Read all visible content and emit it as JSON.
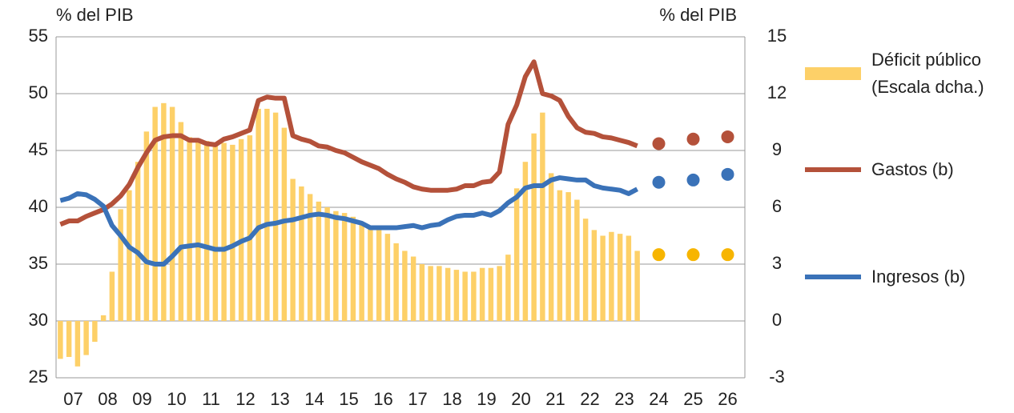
{
  "chart_data": {
    "type": "bar-line",
    "y_label": "% del PIB",
    "y2_label": "% del PIB",
    "xlim": [
      2007,
      2027
    ],
    "xticks": [
      {
        "value": 2007.5,
        "label": "07"
      },
      {
        "value": 2008.5,
        "label": "08"
      },
      {
        "value": 2009.5,
        "label": "09"
      },
      {
        "value": 2010.5,
        "label": "10"
      },
      {
        "value": 2011.5,
        "label": "11"
      },
      {
        "value": 2012.5,
        "label": "12"
      },
      {
        "value": 2013.5,
        "label": "13"
      },
      {
        "value": 2014.5,
        "label": "14"
      },
      {
        "value": 2015.5,
        "label": "15"
      },
      {
        "value": 2016.5,
        "label": "16"
      },
      {
        "value": 2017.5,
        "label": "17"
      },
      {
        "value": 2018.5,
        "label": "18"
      },
      {
        "value": 2019.5,
        "label": "19"
      },
      {
        "value": 2020.5,
        "label": "20"
      },
      {
        "value": 2021.5,
        "label": "21"
      },
      {
        "value": 2022.5,
        "label": "22"
      },
      {
        "value": 2023.5,
        "label": "23"
      },
      {
        "value": 2024.5,
        "label": "24"
      },
      {
        "value": 2025.5,
        "label": "25"
      },
      {
        "value": 2026.5,
        "label": "26"
      }
    ],
    "ylim": [
      25,
      55
    ],
    "yticks": [
      25,
      30,
      35,
      40,
      45,
      50,
      55
    ],
    "y2lim": [
      -3,
      15
    ],
    "y2ticks": [
      -3,
      0,
      3,
      6,
      9,
      12,
      15
    ],
    "grid": true,
    "x": [
      2007.125,
      2007.375,
      2007.625,
      2007.875,
      2008.125,
      2008.375,
      2008.625,
      2008.875,
      2009.125,
      2009.375,
      2009.625,
      2009.875,
      2010.125,
      2010.375,
      2010.625,
      2010.875,
      2011.125,
      2011.375,
      2011.625,
      2011.875,
      2012.125,
      2012.375,
      2012.625,
      2012.875,
      2013.125,
      2013.375,
      2013.625,
      2013.875,
      2014.125,
      2014.375,
      2014.625,
      2014.875,
      2015.125,
      2015.375,
      2015.625,
      2015.875,
      2016.125,
      2016.375,
      2016.625,
      2016.875,
      2017.125,
      2017.375,
      2017.625,
      2017.875,
      2018.125,
      2018.375,
      2018.625,
      2018.875,
      2019.125,
      2019.375,
      2019.625,
      2019.875,
      2020.125,
      2020.375,
      2020.625,
      2020.875,
      2021.125,
      2021.375,
      2021.625,
      2021.875,
      2022.125,
      2022.375,
      2022.625,
      2022.875,
      2023.125,
      2023.375,
      2023.625,
      2023.875
    ],
    "series": [
      {
        "name": "Déficit público (Escala dcha.)",
        "type": "bar",
        "axis": "y2",
        "color": "#fdd068",
        "values": [
          -2.0,
          -1.9,
          -2.4,
          -1.8,
          -1.1,
          0.3,
          2.6,
          5.9,
          6.9,
          8.4,
          10.0,
          11.3,
          11.5,
          11.3,
          10.5,
          9.7,
          9.5,
          9.5,
          9.4,
          9.4,
          9.3,
          9.6,
          9.8,
          11.2,
          11.2,
          11.0,
          10.2,
          7.5,
          7.1,
          6.7,
          6.3,
          6.0,
          5.8,
          5.7,
          5.5,
          5.2,
          5.0,
          4.9,
          4.6,
          4.1,
          3.7,
          3.4,
          3.0,
          2.9,
          2.9,
          2.8,
          2.7,
          2.6,
          2.6,
          2.8,
          2.8,
          2.9,
          3.5,
          7.0,
          8.4,
          9.9,
          11.0,
          7.8,
          6.9,
          6.8,
          6.4,
          5.4,
          4.8,
          4.5,
          4.7,
          4.6,
          4.5,
          3.7
        ]
      },
      {
        "name": "Gastos (b)",
        "type": "line",
        "color": "#b4513a",
        "values": [
          38.5,
          38.8,
          38.8,
          39.2,
          39.5,
          39.8,
          40.3,
          41.0,
          42.0,
          43.5,
          44.8,
          45.9,
          46.2,
          46.3,
          46.3,
          45.9,
          45.9,
          45.6,
          45.5,
          46.0,
          46.2,
          46.5,
          46.8,
          49.4,
          49.7,
          49.6,
          49.6,
          46.3,
          46.0,
          45.8,
          45.4,
          45.3,
          45.0,
          44.8,
          44.4,
          44.0,
          43.7,
          43.4,
          42.9,
          42.5,
          42.2,
          41.8,
          41.6,
          41.5,
          41.5,
          41.5,
          41.6,
          41.9,
          41.9,
          42.2,
          42.3,
          43.1,
          47.3,
          49.0,
          51.5,
          52.8,
          50.0,
          49.8,
          49.4,
          48.0,
          47.0,
          46.6,
          46.5,
          46.2,
          46.1,
          45.9,
          45.7,
          45.4
        ]
      },
      {
        "name": "Ingresos (b)",
        "type": "line",
        "color": "#3a72b8",
        "values": [
          40.6,
          40.8,
          41.2,
          41.1,
          40.7,
          40.1,
          38.4,
          37.5,
          36.5,
          36.0,
          35.2,
          35.0,
          35.0,
          35.7,
          36.5,
          36.6,
          36.7,
          36.5,
          36.3,
          36.3,
          36.6,
          37.0,
          37.3,
          38.2,
          38.5,
          38.6,
          38.8,
          38.9,
          39.1,
          39.3,
          39.4,
          39.3,
          39.1,
          39.0,
          38.8,
          38.6,
          38.2,
          38.2,
          38.2,
          38.2,
          38.3,
          38.4,
          38.2,
          38.4,
          38.5,
          38.9,
          39.2,
          39.3,
          39.3,
          39.5,
          39.3,
          39.7,
          40.4,
          40.9,
          41.7,
          41.9,
          41.9,
          42.4,
          42.6,
          42.5,
          42.4,
          42.4,
          41.9,
          41.7,
          41.6,
          41.5,
          41.2,
          41.6
        ]
      }
    ],
    "projections": {
      "x": [
        2024.5,
        2025.5,
        2026.5
      ],
      "colors": [
        "#f7b500",
        "#b4513a",
        "#3a72b8"
      ],
      "values": [
        [
          3.5,
          3.5,
          3.5
        ],
        [
          45.6,
          46.0,
          46.2
        ],
        [
          42.2,
          42.4,
          42.9
        ]
      ]
    }
  }
}
